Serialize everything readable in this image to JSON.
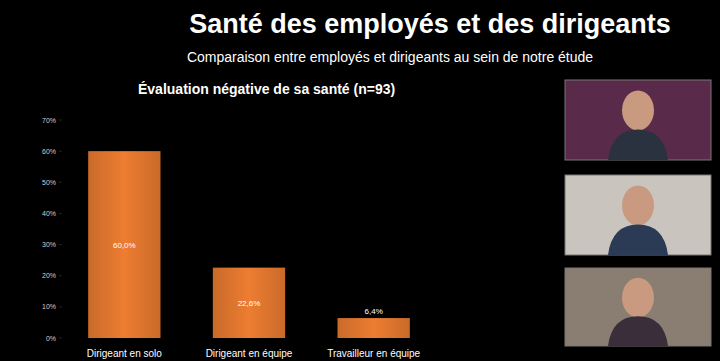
{
  "chart_data": {
    "type": "bar",
    "title": "Santé des employés et des dirigeants",
    "subtitle": "Comparaison entre employés et dirigeants au sein de notre étude",
    "chart_title": "Évaluation négative de sa santé (n=93)",
    "categories": [
      "Dirigeant en solo",
      "Dirigeant en équipe",
      "Travailleur en équipe"
    ],
    "values": [
      60.0,
      22.6,
      6.4
    ],
    "value_labels": [
      "60,0%",
      "22,6%",
      "6,4%"
    ],
    "color": "#ed7d31",
    "ylim": [
      0,
      70
    ],
    "yticks": [
      {
        "value": 0,
        "label": "0%"
      },
      {
        "value": 10,
        "label": "10%"
      },
      {
        "value": 20,
        "label": "20%"
      },
      {
        "value": 30,
        "label": "30%"
      },
      {
        "value": 40,
        "label": "40%"
      },
      {
        "value": 50,
        "label": "50%"
      },
      {
        "value": 60,
        "label": "60%"
      },
      {
        "value": 70,
        "label": "70%"
      }
    ],
    "grid": false,
    "data_labels": true
  }
}
